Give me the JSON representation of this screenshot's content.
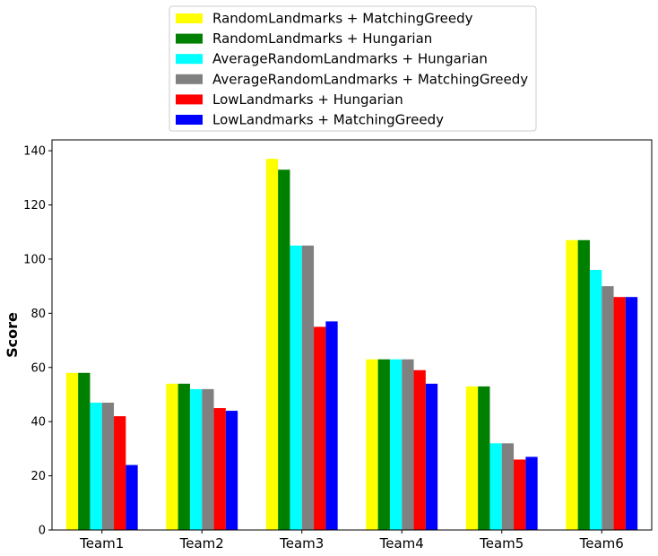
{
  "chart_data": {
    "type": "bar",
    "title": "",
    "xlabel": "",
    "ylabel": "Score",
    "ylim": [
      0,
      144
    ],
    "yticks": [
      0,
      20,
      40,
      60,
      80,
      100,
      120,
      140
    ],
    "categories": [
      "Team1",
      "Team2",
      "Team3",
      "Team4",
      "Team5",
      "Team6"
    ],
    "legend_position": "top-center-outside",
    "grid": false,
    "series": [
      {
        "name": "RandomLandmarks + MatchingGreedy",
        "color": "#ffff00",
        "values": [
          58,
          54,
          137,
          63,
          53,
          107
        ]
      },
      {
        "name": "RandomLandmarks + Hungarian",
        "color": "#008000",
        "values": [
          58,
          54,
          133,
          63,
          53,
          107
        ]
      },
      {
        "name": "AverageRandomLandmarks + Hungarian",
        "color": "#00ffff",
        "values": [
          47,
          52,
          105,
          63,
          32,
          96
        ]
      },
      {
        "name": "AverageRandomLandmarks + MatchingGreedy",
        "color": "#808080",
        "values": [
          47,
          52,
          105,
          63,
          32,
          90
        ]
      },
      {
        "name": "LowLandmarks + Hungarian",
        "color": "#ff0000",
        "values": [
          42,
          45,
          75,
          59,
          26,
          86
        ]
      },
      {
        "name": "LowLandmarks + MatchingGreedy",
        "color": "#0000ff",
        "values": [
          24,
          44,
          77,
          54,
          27,
          86
        ]
      }
    ]
  }
}
